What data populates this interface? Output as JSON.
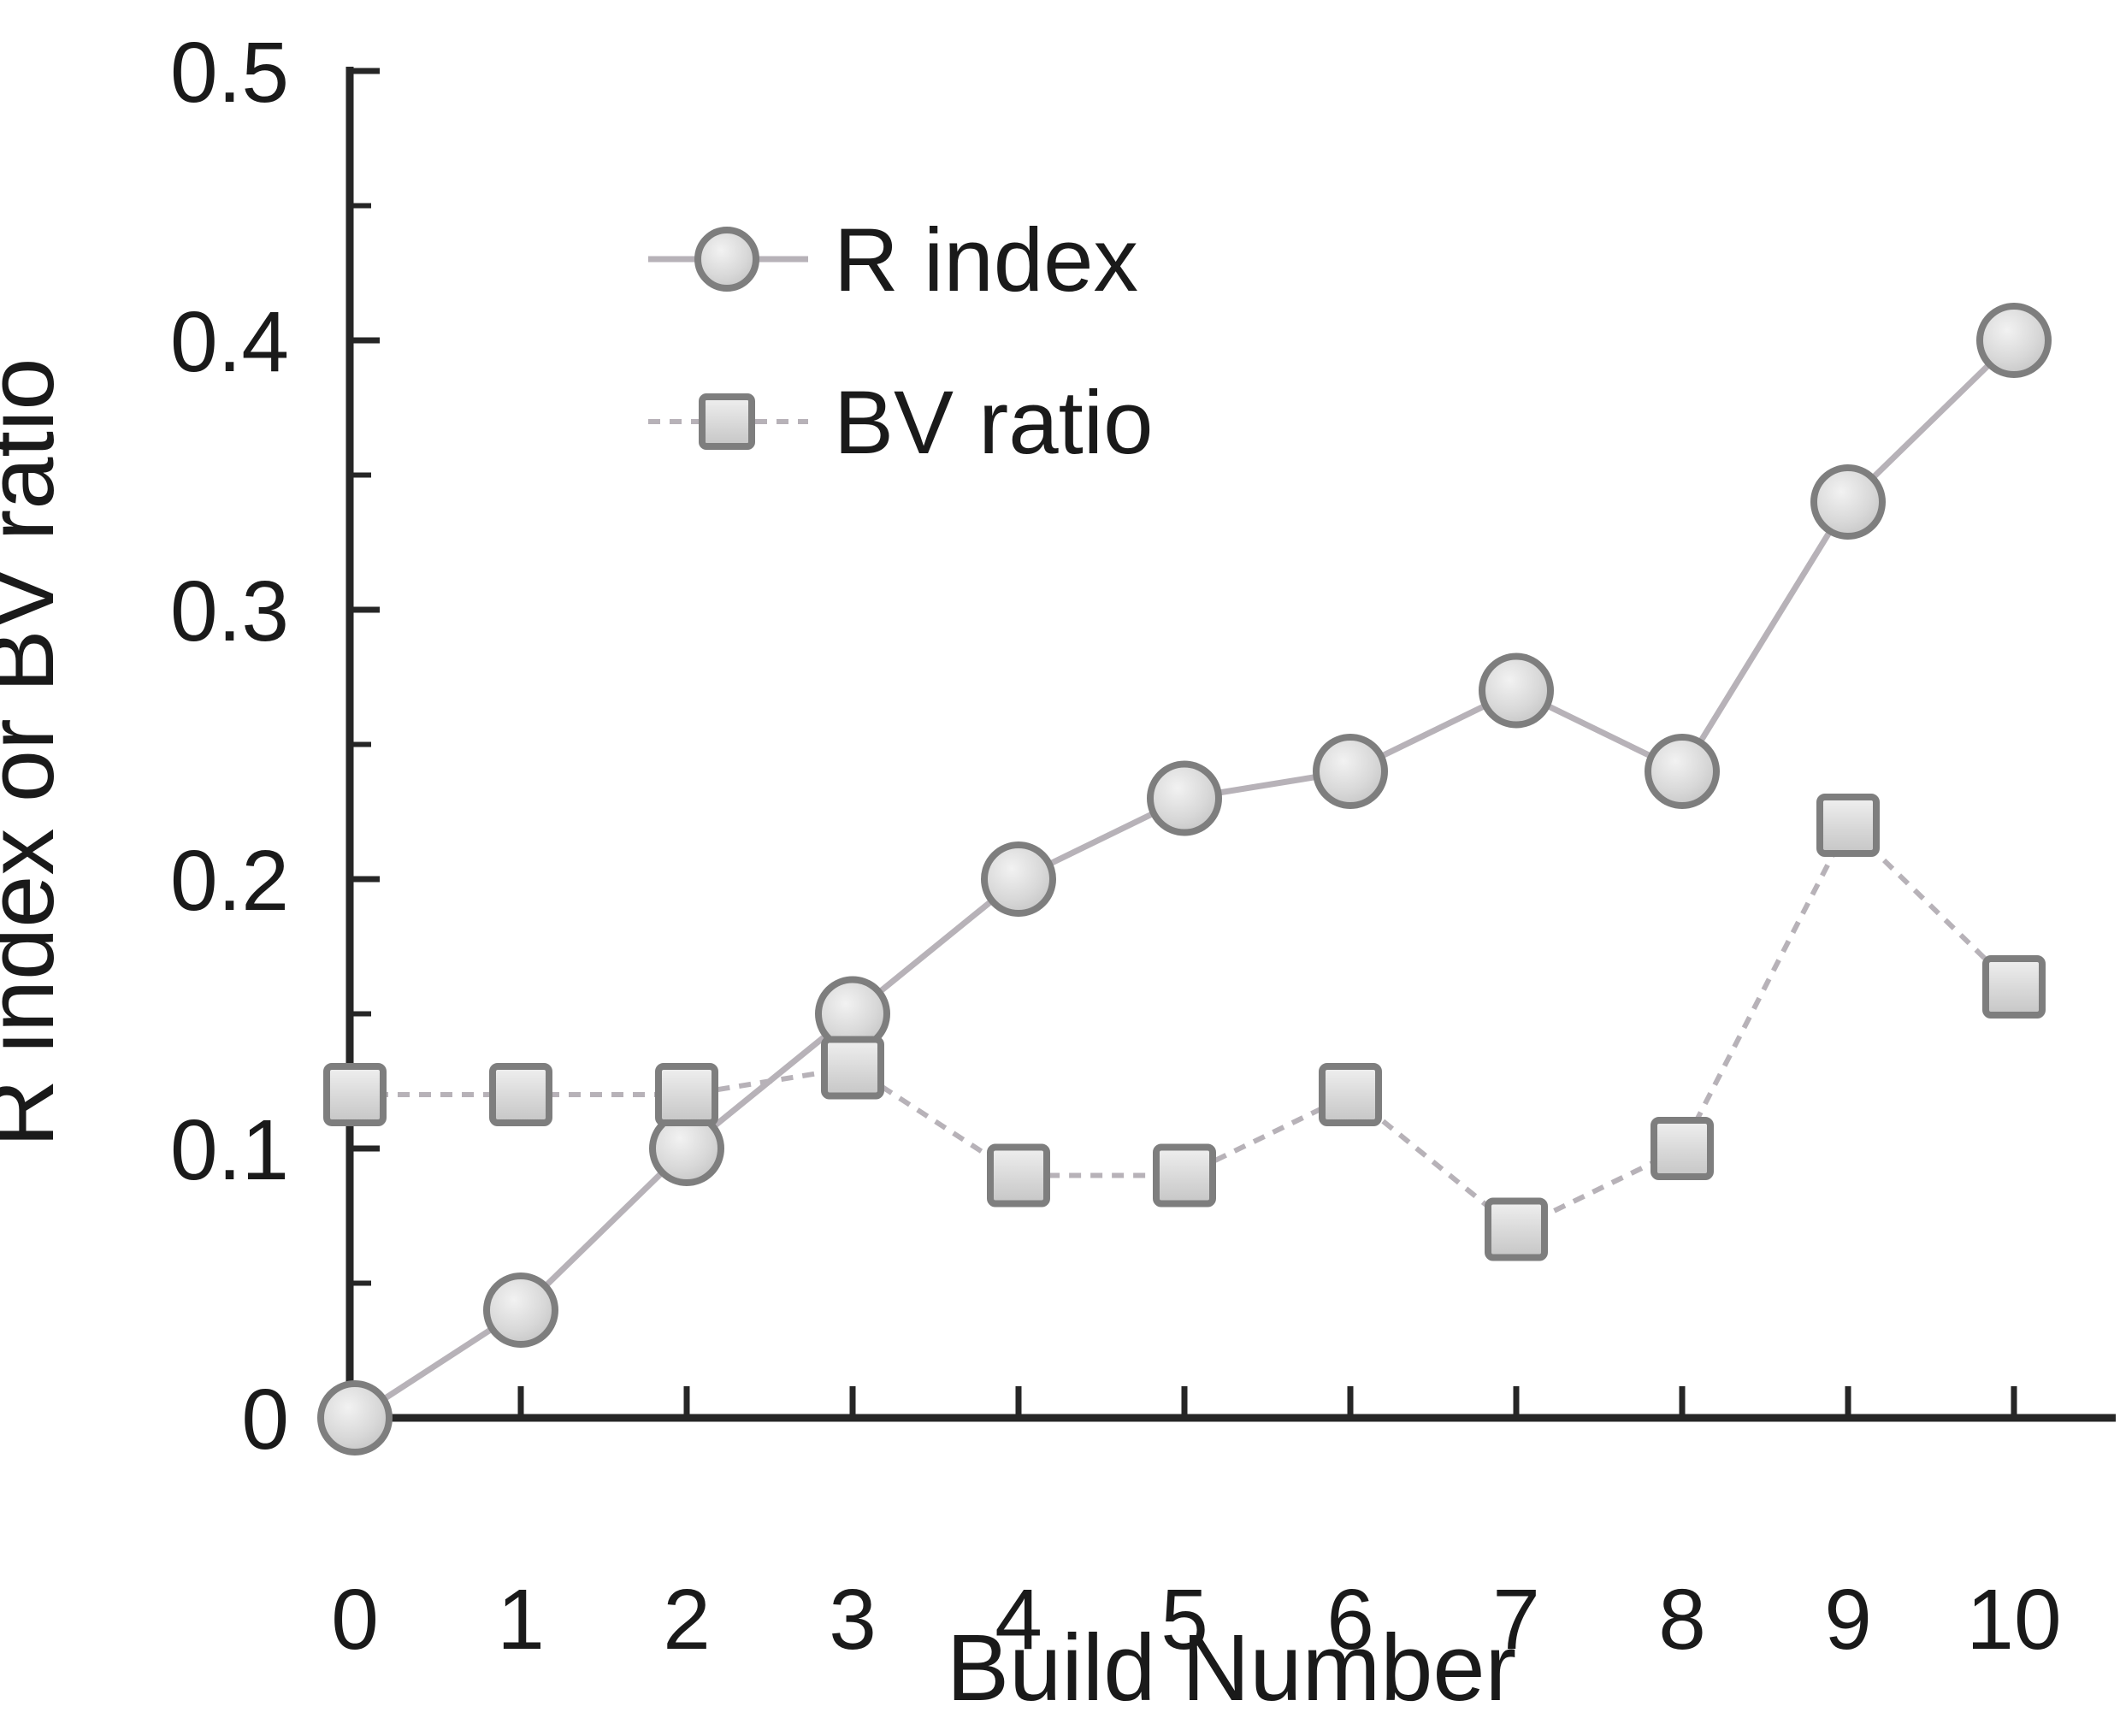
{
  "chart_data": {
    "type": "line",
    "title": "",
    "xlabel": "Build Number",
    "ylabel": "R index or BV ratio",
    "x": [
      0,
      1,
      2,
      3,
      4,
      5,
      6,
      7,
      8,
      9,
      10
    ],
    "x_tick_labels": [
      "0",
      "1",
      "2",
      "3",
      "4",
      "5",
      "6",
      "7",
      "8",
      "9",
      "10"
    ],
    "y_tick_values": [
      0,
      0.1,
      0.2,
      0.3,
      0.4,
      0.5
    ],
    "y_tick_labels": [
      "0",
      "0.1",
      "0.2",
      "0.3",
      "0.4",
      "0.5"
    ],
    "y_minor_tick_values": [
      0.05,
      0.15,
      0.25,
      0.35,
      0.45
    ],
    "xlim": [
      0,
      10
    ],
    "ylim": [
      0,
      0.5
    ],
    "grid": "off",
    "legend_position": "upper-left-inside",
    "series": [
      {
        "name": "R index",
        "marker": "circle",
        "line_style": "solid",
        "values": [
          0.0,
          0.04,
          0.1,
          0.15,
          0.2,
          0.23,
          0.24,
          0.27,
          0.24,
          0.34,
          0.4
        ]
      },
      {
        "name": "BV ratio",
        "marker": "square",
        "line_style": "dashed",
        "values": [
          0.12,
          0.12,
          0.12,
          0.13,
          0.09,
          0.09,
          0.12,
          0.07,
          0.1,
          0.22,
          0.16
        ]
      }
    ]
  },
  "colors": {
    "background": "#ffffff",
    "axis": "#262626",
    "text": "#1a1a1a",
    "series_line": "#b7b2b8",
    "marker_fill": "#d8d8d8",
    "marker_fill_light": "#efefef",
    "marker_stroke": "#7e7e7e"
  }
}
